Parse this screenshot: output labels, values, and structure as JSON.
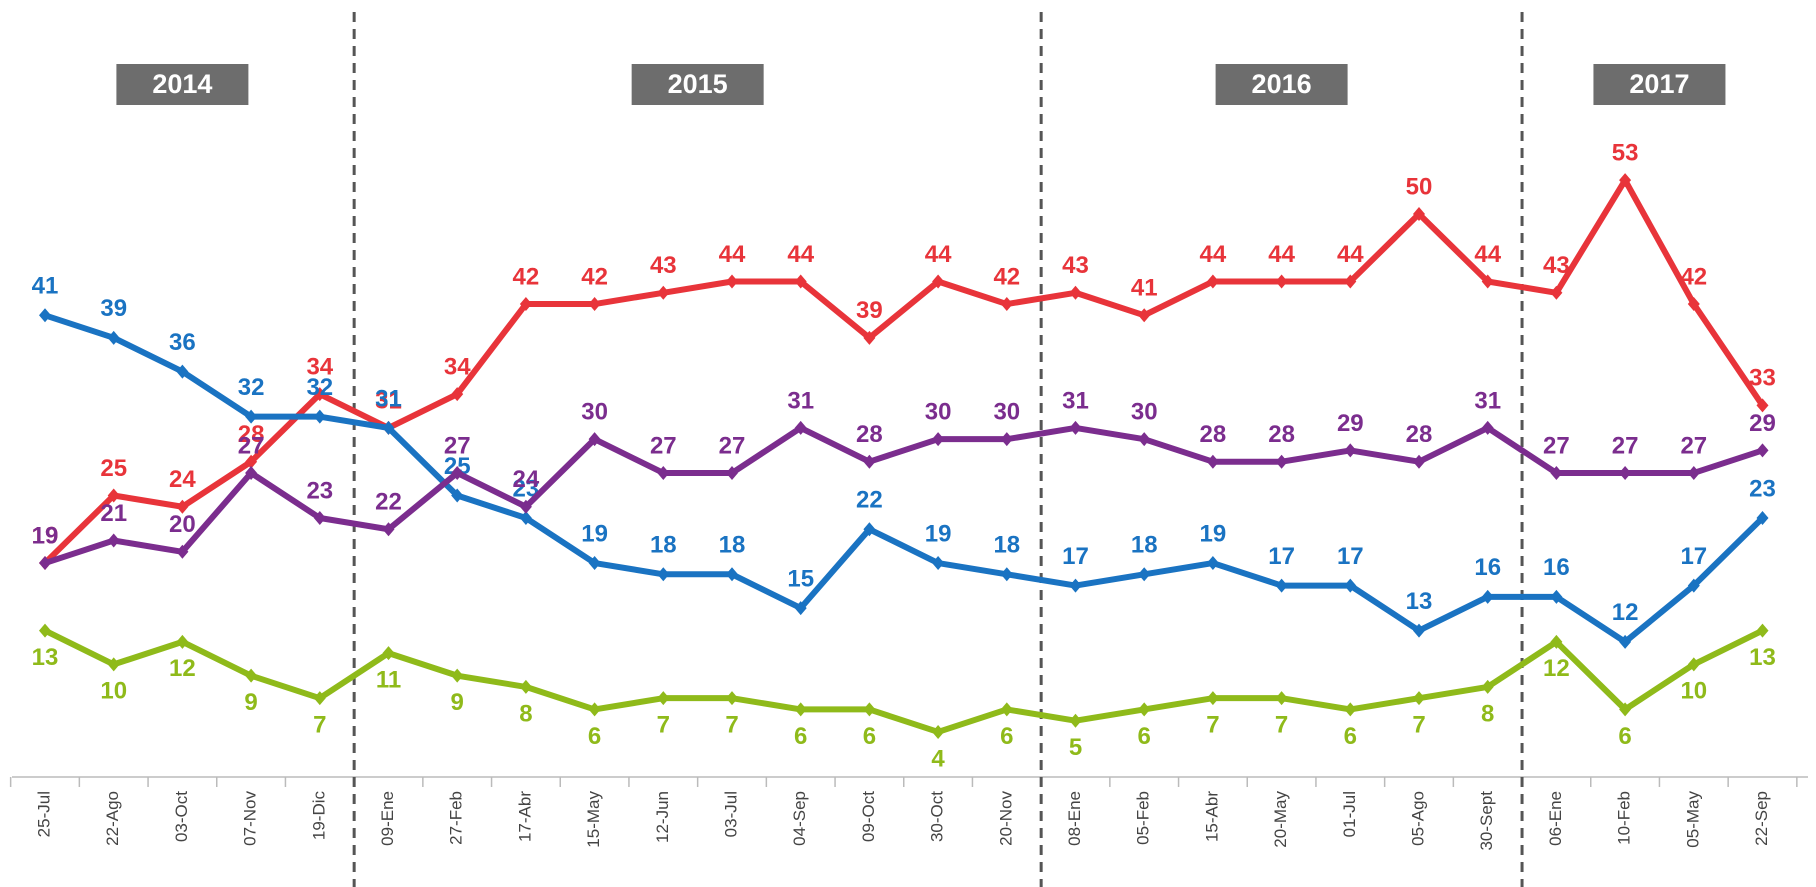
{
  "chart_data": {
    "type": "line",
    "categories": [
      "25-Jul",
      "22-Ago",
      "03-Oct",
      "07-Nov",
      "19-Dic",
      "09-Ene",
      "27-Feb",
      "17-Abr",
      "15-May",
      "12-Jun",
      "03-Jul",
      "04-Sep",
      "09-Oct",
      "30-Oct",
      "20-Nov",
      "08-Ene",
      "05-Feb",
      "15-Abr",
      "20-May",
      "01-Jul",
      "05-Ago",
      "30-Sept",
      "06-Ene",
      "10-Feb",
      "05-May",
      "22-Sep"
    ],
    "groups": [
      {
        "label": "2014",
        "start": 0,
        "end": 4
      },
      {
        "label": "2015",
        "start": 5,
        "end": 14
      },
      {
        "label": "2016",
        "start": 15,
        "end": 21
      },
      {
        "label": "2017",
        "start": 22,
        "end": 25
      }
    ],
    "ylim": [
      0,
      69
    ],
    "series": [
      {
        "color": "#e8343a",
        "values": [
          19,
          25,
          24,
          28,
          34,
          31,
          34,
          42,
          42,
          43,
          44,
          44,
          39,
          44,
          42,
          43,
          41,
          44,
          44,
          44,
          50,
          44,
          43,
          53,
          42,
          33
        ]
      },
      {
        "color": "#1a73c2",
        "values": [
          41,
          39,
          36,
          32,
          32,
          31,
          25,
          23,
          19,
          18,
          18,
          15,
          22,
          19,
          18,
          17,
          18,
          19,
          17,
          17,
          13,
          16,
          16,
          12,
          17,
          23
        ]
      },
      {
        "color": "#7b2d8e",
        "values": [
          19,
          21,
          20,
          27,
          23,
          22,
          27,
          24,
          30,
          27,
          27,
          31,
          28,
          30,
          30,
          31,
          30,
          28,
          28,
          29,
          28,
          31,
          27,
          27,
          27,
          29
        ]
      },
      {
        "color": "#8fba1a",
        "values": [
          13,
          10,
          12,
          9,
          7,
          11,
          9,
          8,
          6,
          7,
          7,
          6,
          6,
          4,
          6,
          5,
          6,
          7,
          7,
          6,
          7,
          8,
          12,
          6,
          10,
          13
        ]
      }
    ]
  }
}
